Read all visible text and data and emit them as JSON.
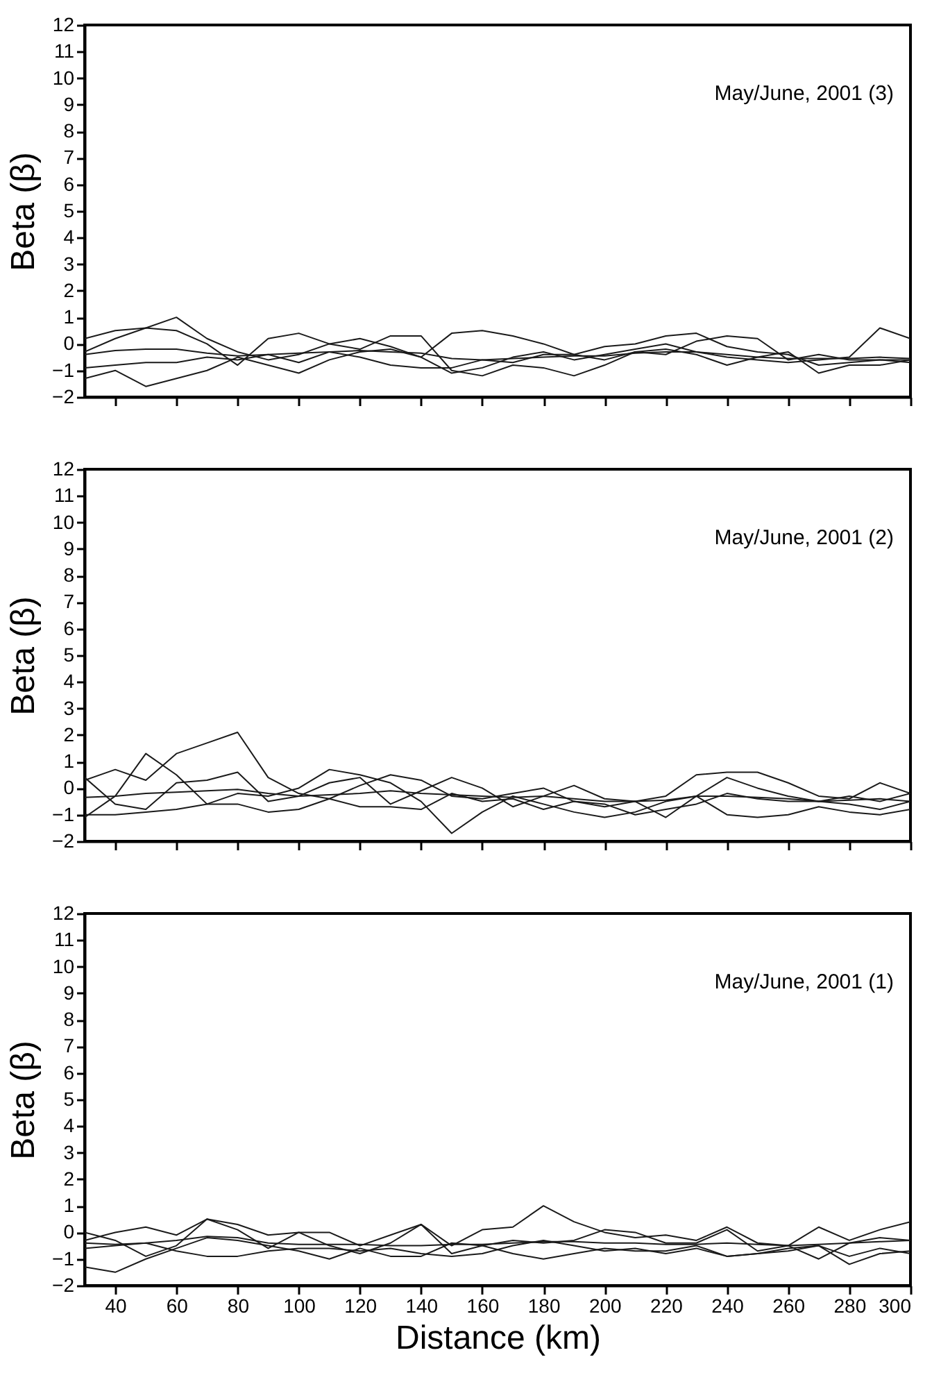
{
  "chart_data": [
    {
      "type": "line",
      "ylabel": "Beta (β)",
      "annotations": [
        "May/June, 2001 (3)"
      ],
      "x": [
        30,
        40,
        50,
        60,
        70,
        80,
        90,
        100,
        110,
        120,
        130,
        140,
        150,
        160,
        170,
        180,
        190,
        200,
        210,
        220,
        230,
        240,
        250,
        260,
        270,
        280,
        290,
        300
      ],
      "xlim": [
        30,
        300
      ],
      "xticks": [
        40,
        60,
        80,
        100,
        120,
        140,
        160,
        180,
        200,
        220,
        240,
        260,
        280,
        300
      ],
      "ylim": [
        -2,
        12
      ],
      "yticks": [
        -2,
        -1,
        0,
        1,
        2,
        3,
        4,
        5,
        6,
        7,
        8,
        9,
        10,
        11,
        12
      ],
      "tick_labels": "y",
      "series": [
        {
          "color": "#1a1a1a",
          "values": [
            -0.3,
            0.2,
            0.6,
            1.0,
            0.2,
            -0.3,
            -0.6,
            -0.4,
            0.0,
            0.2,
            -0.1,
            -0.5,
            -1.1,
            -0.9,
            -0.5,
            -0.3,
            -0.6,
            -0.4,
            -0.2,
            0.0,
            -0.3,
            -0.5,
            -0.6,
            -0.7,
            -0.6,
            -0.5,
            0.6,
            0.2
          ]
        },
        {
          "color": "#1a1a1a",
          "values": [
            -1.3,
            -1.0,
            -1.6,
            -1.3,
            -1.0,
            -0.5,
            -0.8,
            -1.1,
            -0.6,
            -0.3,
            -0.2,
            -0.5,
            0.4,
            0.5,
            0.3,
            0.0,
            -0.4,
            -0.1,
            0.0,
            0.3,
            0.4,
            -0.1,
            -0.3,
            -0.4,
            -0.8,
            -0.7,
            -0.6,
            -0.6
          ]
        },
        {
          "color": "#1a1a1a",
          "values": [
            0.2,
            0.5,
            0.6,
            0.5,
            0.0,
            -0.8,
            0.2,
            0.4,
            0.0,
            -0.2,
            0.3,
            0.3,
            -1.0,
            -1.2,
            -0.8,
            -0.9,
            -1.2,
            -0.8,
            -0.3,
            -0.4,
            0.1,
            0.3,
            0.2,
            -0.6,
            -0.4,
            -0.6,
            -0.6,
            -0.7
          ]
        },
        {
          "color": "#1a1a1a",
          "values": [
            -0.9,
            -0.8,
            -0.7,
            -0.7,
            -0.5,
            -0.6,
            -0.4,
            -0.7,
            -0.3,
            -0.5,
            -0.8,
            -0.9,
            -0.9,
            -0.6,
            -0.7,
            -0.4,
            -0.4,
            -0.6,
            -0.3,
            -0.2,
            -0.4,
            -0.8,
            -0.5,
            -0.3,
            -1.1,
            -0.8,
            -0.8,
            -0.6
          ]
        },
        {
          "color": "#1a1a1a",
          "values": [
            -0.4,
            -0.25,
            -0.2,
            -0.2,
            -0.35,
            -0.45,
            -0.4,
            -0.35,
            -0.3,
            -0.25,
            -0.3,
            -0.35,
            -0.55,
            -0.6,
            -0.55,
            -0.5,
            -0.45,
            -0.45,
            -0.35,
            -0.3,
            -0.3,
            -0.4,
            -0.5,
            -0.55,
            -0.55,
            -0.55,
            -0.5,
            -0.55
          ]
        }
      ]
    },
    {
      "type": "line",
      "ylabel": "Beta (β)",
      "annotations": [
        "May/June, 2001 (2)"
      ],
      "x": [
        30,
        40,
        50,
        60,
        70,
        80,
        90,
        100,
        110,
        120,
        130,
        140,
        150,
        160,
        170,
        180,
        190,
        200,
        210,
        220,
        230,
        240,
        250,
        260,
        270,
        280,
        290,
        300
      ],
      "xlim": [
        30,
        300
      ],
      "xticks": [
        40,
        60,
        80,
        100,
        120,
        140,
        160,
        180,
        200,
        220,
        240,
        260,
        280,
        300
      ],
      "ylim": [
        -2,
        12
      ],
      "yticks": [
        -2,
        -1,
        0,
        1,
        2,
        3,
        4,
        5,
        6,
        7,
        8,
        9,
        10,
        11,
        12
      ],
      "tick_labels": "y",
      "series": [
        {
          "color": "#1a1a1a",
          "values": [
            0.3,
            0.7,
            0.3,
            1.3,
            1.7,
            2.1,
            0.4,
            -0.2,
            -0.4,
            0.1,
            0.5,
            0.3,
            -0.3,
            -0.4,
            -0.2,
            0.0,
            -0.5,
            -0.7,
            -0.5,
            -0.3,
            0.5,
            0.6,
            0.6,
            0.2,
            -0.3,
            -0.4,
            0.2,
            -0.2
          ]
        },
        {
          "color": "#1a1a1a",
          "values": [
            -1.1,
            -0.3,
            1.3,
            0.5,
            -0.6,
            -0.2,
            -0.3,
            0.0,
            0.7,
            0.5,
            0.2,
            -0.5,
            -1.7,
            -0.9,
            -0.3,
            -0.6,
            -0.9,
            -1.1,
            -0.9,
            -0.5,
            -0.3,
            -1.0,
            -1.1,
            -1.0,
            -0.7,
            -0.9,
            -1.0,
            -0.8
          ]
        },
        {
          "color": "#1a1a1a",
          "values": [
            0.4,
            -0.6,
            -0.8,
            0.2,
            0.3,
            0.6,
            -0.5,
            -0.3,
            0.2,
            0.4,
            -0.6,
            -0.1,
            0.4,
            0.0,
            -0.7,
            -0.3,
            0.1,
            -0.4,
            -0.5,
            -1.1,
            -0.3,
            0.4,
            0.0,
            -0.3,
            -0.5,
            -0.3,
            -0.5,
            -0.2
          ]
        },
        {
          "color": "#1a1a1a",
          "values": [
            -1.0,
            -1.0,
            -0.9,
            -0.8,
            -0.6,
            -0.6,
            -0.9,
            -0.8,
            -0.4,
            -0.7,
            -0.7,
            -0.8,
            -0.2,
            -0.5,
            -0.4,
            -0.8,
            -0.5,
            -0.6,
            -1.0,
            -0.8,
            -0.6,
            -0.2,
            -0.4,
            -0.5,
            -0.5,
            -0.6,
            -0.8,
            -0.5
          ]
        },
        {
          "color": "#1a1a1a",
          "values": [
            -0.35,
            -0.3,
            -0.2,
            -0.15,
            -0.1,
            -0.05,
            -0.2,
            -0.3,
            -0.25,
            -0.2,
            -0.1,
            -0.2,
            -0.25,
            -0.3,
            -0.35,
            -0.3,
            -0.4,
            -0.5,
            -0.5,
            -0.45,
            -0.3,
            -0.3,
            -0.35,
            -0.4,
            -0.5,
            -0.45,
            -0.4,
            -0.5
          ]
        }
      ]
    },
    {
      "type": "line",
      "xlabel": "Distance (km)",
      "ylabel": "Beta (β)",
      "annotations": [
        "May/June, 2001 (1)"
      ],
      "x": [
        30,
        40,
        50,
        60,
        70,
        80,
        90,
        100,
        110,
        120,
        130,
        140,
        150,
        160,
        170,
        180,
        190,
        200,
        210,
        220,
        230,
        240,
        250,
        260,
        270,
        280,
        290,
        300
      ],
      "xlim": [
        30,
        300
      ],
      "xticks": [
        40,
        60,
        80,
        100,
        120,
        140,
        160,
        180,
        200,
        220,
        240,
        260,
        280,
        300
      ],
      "ylim": [
        -2,
        12
      ],
      "yticks": [
        -2,
        -1,
        0,
        1,
        2,
        3,
        4,
        5,
        6,
        7,
        8,
        9,
        10,
        11,
        12
      ],
      "series": [
        {
          "color": "#1a1a1a",
          "values": [
            -0.3,
            0.0,
            0.2,
            -0.1,
            0.5,
            0.3,
            -0.1,
            0.0,
            0.0,
            -0.5,
            -0.1,
            0.3,
            -0.5,
            0.1,
            0.2,
            1.0,
            0.4,
            0.0,
            -0.2,
            -0.1,
            -0.3,
            0.2,
            -0.4,
            -0.5,
            0.2,
            -0.3,
            0.1,
            0.4
          ]
        },
        {
          "color": "#1a1a1a",
          "values": [
            -1.3,
            -1.5,
            -1.0,
            -0.6,
            -0.2,
            -0.3,
            -0.5,
            -0.7,
            -1.0,
            -0.6,
            -0.9,
            -0.9,
            -0.4,
            -0.5,
            -0.8,
            -1.0,
            -0.8,
            -0.6,
            -0.7,
            -0.7,
            -0.5,
            -0.9,
            -0.8,
            -0.6,
            -0.5,
            -0.9,
            -0.6,
            -0.8
          ]
        },
        {
          "color": "#1a1a1a",
          "values": [
            0.0,
            -0.3,
            -0.9,
            -0.5,
            0.5,
            0.1,
            -0.6,
            0.0,
            -0.5,
            -0.8,
            -0.4,
            0.3,
            -0.8,
            -0.5,
            -0.3,
            -0.4,
            -0.3,
            0.1,
            0.0,
            -0.4,
            -0.4,
            0.1,
            -0.7,
            -0.5,
            -1.0,
            -0.4,
            -0.2,
            -0.3
          ]
        },
        {
          "color": "#1a1a1a",
          "values": [
            -0.6,
            -0.5,
            -0.4,
            -0.7,
            -0.9,
            -0.9,
            -0.7,
            -0.6,
            -0.6,
            -0.7,
            -0.6,
            -0.8,
            -0.9,
            -0.8,
            -0.5,
            -0.3,
            -0.5,
            -0.7,
            -0.6,
            -0.8,
            -0.6,
            -0.9,
            -0.8,
            -0.7,
            -0.5,
            -1.2,
            -0.8,
            -0.7
          ]
        },
        {
          "color": "#1a1a1a",
          "values": [
            -0.4,
            -0.45,
            -0.4,
            -0.3,
            -0.15,
            -0.2,
            -0.4,
            -0.45,
            -0.45,
            -0.45,
            -0.5,
            -0.5,
            -0.45,
            -0.45,
            -0.4,
            -0.35,
            -0.35,
            -0.4,
            -0.4,
            -0.45,
            -0.45,
            -0.4,
            -0.45,
            -0.5,
            -0.45,
            -0.4,
            -0.35,
            -0.3
          ]
        }
      ]
    }
  ]
}
